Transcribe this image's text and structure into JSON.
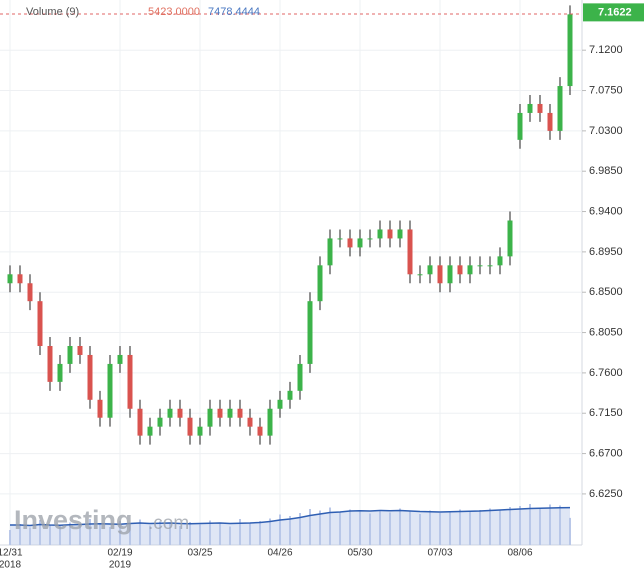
{
  "chart_data": {
    "type": "candlestick",
    "legend_title": "Volume (9)",
    "volume_label": "5423.0000",
    "ma_label": "7478.4444",
    "watermark": "Investing",
    "watermark_suffix": ".com",
    "last_price": 7.1622,
    "up_color": "#3cb34a",
    "down_color": "#d9534f",
    "volume_color": "#b9c7e8",
    "ma_color": "#2f5fb3",
    "grid": true,
    "categories": [
      "12/31",
      null,
      null,
      null,
      null,
      null,
      null,
      null,
      null,
      null,
      null,
      "02/19",
      null,
      null,
      null,
      null,
      null,
      null,
      null,
      "03/25",
      null,
      null,
      null,
      null,
      null,
      null,
      null,
      "04/26",
      null,
      null,
      null,
      null,
      null,
      null,
      null,
      "05/30",
      null,
      null,
      null,
      null,
      null,
      null,
      null,
      "07/03",
      null,
      null,
      null,
      null,
      null,
      null,
      null,
      "08/06",
      null,
      null,
      null,
      null,
      null
    ],
    "year_labels": [
      {
        "index": 0,
        "label": "2018"
      },
      {
        "index": 11,
        "label": "2019"
      }
    ],
    "open": [
      6.86,
      6.87,
      6.86,
      6.84,
      6.79,
      6.75,
      6.77,
      6.79,
      6.78,
      6.73,
      6.71,
      6.77,
      6.78,
      6.72,
      6.69,
      6.7,
      6.71,
      6.72,
      6.71,
      6.69,
      6.7,
      6.72,
      6.71,
      6.72,
      6.71,
      6.7,
      6.69,
      6.72,
      6.73,
      6.74,
      6.77,
      6.84,
      6.88,
      6.91,
      6.91,
      6.9,
      6.91,
      6.91,
      6.92,
      6.91,
      6.92,
      6.87,
      6.87,
      6.88,
      6.86,
      6.88,
      6.87,
      6.88,
      6.88,
      6.88,
      6.89,
      7.02,
      7.05,
      7.06,
      7.05,
      7.03,
      7.08
    ],
    "high": [
      6.88,
      6.88,
      6.87,
      6.85,
      6.8,
      6.78,
      6.8,
      6.8,
      6.79,
      6.74,
      6.78,
      6.79,
      6.79,
      6.73,
      6.71,
      6.72,
      6.73,
      6.73,
      6.72,
      6.71,
      6.73,
      6.73,
      6.73,
      6.73,
      6.72,
      6.71,
      6.73,
      6.74,
      6.75,
      6.78,
      6.85,
      6.89,
      6.92,
      6.92,
      6.92,
      6.92,
      6.92,
      6.93,
      6.93,
      6.93,
      6.93,
      6.88,
      6.89,
      6.89,
      6.89,
      6.89,
      6.89,
      6.89,
      6.89,
      6.9,
      6.94,
      7.06,
      7.07,
      7.07,
      7.06,
      7.09,
      7.17
    ],
    "low": [
      6.85,
      6.85,
      6.83,
      6.78,
      6.74,
      6.74,
      6.76,
      6.77,
      6.72,
      6.7,
      6.7,
      6.76,
      6.71,
      6.68,
      6.68,
      6.69,
      6.7,
      6.7,
      6.68,
      6.68,
      6.69,
      6.7,
      6.7,
      6.7,
      6.69,
      6.68,
      6.68,
      6.71,
      6.72,
      6.73,
      6.76,
      6.83,
      6.87,
      6.9,
      6.89,
      6.89,
      6.9,
      6.9,
      6.9,
      6.9,
      6.86,
      6.86,
      6.86,
      6.85,
      6.85,
      6.86,
      6.86,
      6.87,
      6.87,
      6.87,
      6.88,
      7.01,
      7.04,
      7.04,
      7.02,
      7.02,
      7.07
    ],
    "close": [
      6.87,
      6.86,
      6.84,
      6.79,
      6.75,
      6.77,
      6.79,
      6.78,
      6.73,
      6.71,
      6.77,
      6.78,
      6.72,
      6.69,
      6.7,
      6.71,
      6.72,
      6.71,
      6.69,
      6.7,
      6.72,
      6.71,
      6.72,
      6.71,
      6.7,
      6.69,
      6.72,
      6.73,
      6.74,
      6.77,
      6.84,
      6.88,
      6.91,
      6.91,
      6.9,
      6.91,
      6.91,
      6.92,
      6.91,
      6.92,
      6.87,
      6.87,
      6.88,
      6.86,
      6.88,
      6.87,
      6.88,
      6.88,
      6.88,
      6.89,
      6.93,
      7.05,
      7.06,
      7.05,
      7.03,
      7.08,
      7.16
    ],
    "volume": [
      3000,
      4200,
      3500,
      5000,
      4100,
      3800,
      4500,
      3900,
      5200,
      4300,
      3600,
      4800,
      4400,
      5100,
      3900,
      4700,
      4200,
      3800,
      4600,
      4100,
      4900,
      4300,
      3700,
      5200,
      4500,
      4800,
      5300,
      6100,
      5800,
      6400,
      7200,
      6900,
      7500,
      6600,
      7100,
      6800,
      6300,
      7000,
      6500,
      7300,
      6700,
      6200,
      6900,
      6400,
      6600,
      7100,
      6800,
      7000,
      7300,
      6900,
      7600,
      7800,
      8200,
      7400,
      8100,
      7900,
      5423
    ],
    "volume_ma": [
      4000,
      4000,
      3900,
      4100,
      4000,
      3950,
      4050,
      4100,
      4200,
      4250,
      4200,
      4150,
      4300,
      4400,
      4300,
      4350,
      4400,
      4300,
      4250,
      4300,
      4350,
      4400,
      4300,
      4350,
      4400,
      4500,
      4700,
      5000,
      5200,
      5500,
      5900,
      6200,
      6500,
      6600,
      6800,
      6850,
      6800,
      6900,
      6850,
      6900,
      6800,
      6700,
      6650,
      6600,
      6650,
      6700,
      6750,
      6800,
      6900,
      7000,
      7100,
      7200,
      7300,
      7350,
      7400,
      7450,
      7478.4444
    ],
    "volume_ylim": [
      0,
      12000
    ],
    "ylim": [
      6.568,
      7.176
    ],
    "yticks": [
      {
        "value": 6.625,
        "label": "6.6250"
      },
      {
        "value": 6.67,
        "label": "6.6700"
      },
      {
        "value": 6.715,
        "label": "6.7150"
      },
      {
        "value": 6.76,
        "label": "6.7600"
      },
      {
        "value": 6.805,
        "label": "6.8050"
      },
      {
        "value": 6.85,
        "label": "6.8500"
      },
      {
        "value": 6.895,
        "label": "6.8950"
      },
      {
        "value": 6.94,
        "label": "6.9400"
      },
      {
        "value": 6.985,
        "label": "6.9850"
      },
      {
        "value": 7.03,
        "label": "7.0300"
      },
      {
        "value": 7.075,
        "label": "7.0750"
      },
      {
        "value": 7.12,
        "label": "7.1200"
      }
    ]
  }
}
